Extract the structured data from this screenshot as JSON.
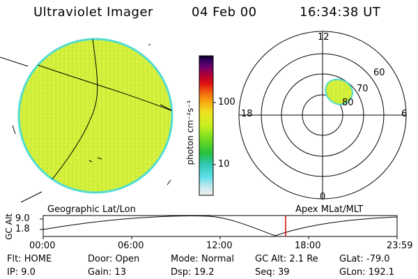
{
  "header": {
    "title": "Ultraviolet Imager",
    "date": "04 Feb 00",
    "time": "16:34:38 UT"
  },
  "colorbar": {
    "label": "photon cm⁻²s⁻¹",
    "ticks": [
      "100",
      "10"
    ]
  },
  "polar": {
    "labels": [
      "12",
      "6",
      "0",
      "18"
    ],
    "lat_labels": [
      "60",
      "70",
      "80"
    ]
  },
  "panel_labels": {
    "left": "Geographic Lat/Lon",
    "right": "Apex MLat/MLT"
  },
  "altitude_plot": {
    "ylabel": "GC Alt",
    "yticks": [
      "9.0",
      "1.8"
    ],
    "xticks": [
      "00:00",
      "06:00",
      "12:00",
      "18:00",
      "23:59"
    ],
    "marker_time": "16:34",
    "marker_color": "#cc0000"
  },
  "info": {
    "row1": [
      {
        "label": "Flt:",
        "value": "HOME"
      },
      {
        "label": "Door:",
        "value": "Open"
      },
      {
        "label": "Mode:",
        "value": "Normal"
      },
      {
        "label": "GC Alt:",
        "value": "2.1 Re"
      },
      {
        "label": "GLat:",
        "value": "-79.0"
      }
    ],
    "row2": [
      {
        "label": "IP:",
        "value": "9.0"
      },
      {
        "label": "Gain:",
        "value": "13"
      },
      {
        "label": "Dsp:",
        "value": "19.2"
      },
      {
        "label": "Seq:",
        "value": "39"
      },
      {
        "label": "GLon:",
        "value": "192.1"
      }
    ]
  },
  "colors": {
    "disk_fill": "#d4f03c",
    "disk_edge": "#50dcd0",
    "oval_fill": "#c8ec3c"
  }
}
